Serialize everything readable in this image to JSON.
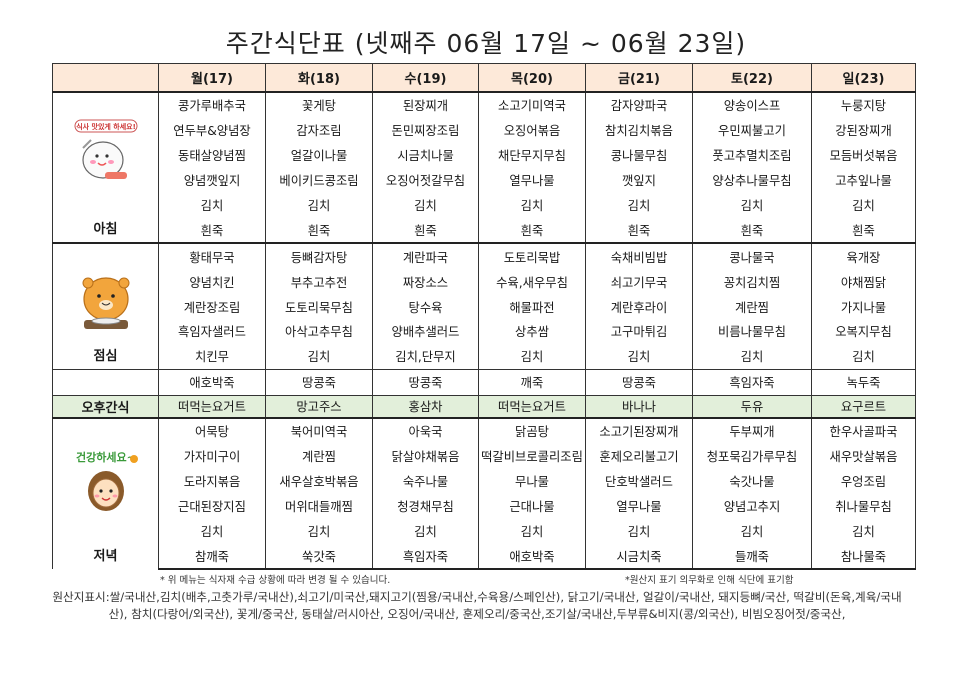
{
  "title": "주간식단표 (넷째주 06월 17일 ~ 06월 23일)",
  "days": [
    "월(17)",
    "화(18)",
    "수(19)",
    "목(20)",
    "금(21)",
    "토(22)",
    "일(23)"
  ],
  "meal_labels": {
    "breakfast": "아침",
    "lunch": "점심",
    "snack": "오후간식",
    "dinner": "저녁"
  },
  "badge_text": "식사 맛있게 하세요!",
  "breakfast": [
    [
      "콩가루배추국",
      "꽃게탕",
      "된장찌개",
      "소고기미역국",
      "감자양파국",
      "양송이스프",
      "누룽지탕"
    ],
    [
      "연두부&양념장",
      "감자조림",
      "돈민찌장조림",
      "오징어볶음",
      "참치김치볶음",
      "우민찌불고기",
      "강된장찌개"
    ],
    [
      "동태살양념찜",
      "얼갈이나물",
      "시금치나물",
      "채단무지무침",
      "콩나물무침",
      "풋고추멸치조림",
      "모듬버섯볶음"
    ],
    [
      "양념깻잎지",
      "베이키드콩조림",
      "오징어젓갈무침",
      "열무나물",
      "깻잎지",
      "양상추나물무침",
      "고추잎나물"
    ],
    [
      "김치",
      "김치",
      "김치",
      "김치",
      "김치",
      "김치",
      "김치"
    ],
    [
      "흰죽",
      "흰죽",
      "흰죽",
      "흰죽",
      "흰죽",
      "흰죽",
      "흰죽"
    ]
  ],
  "lunch": [
    [
      "황태무국",
      "등뼈감자탕",
      "계란파국",
      "도토리묵밥",
      "숙채비빔밥",
      "콩나물국",
      "육개장"
    ],
    [
      "양념치킨",
      "부추고추전",
      "짜장소스",
      "수육,새우무침",
      "쇠고기무국",
      "꽁치김치찜",
      "야채찜닭"
    ],
    [
      "계란장조림",
      "도토리묵무침",
      "탕수육",
      "해물파전",
      "계란후라이",
      "계란찜",
      "가지나물"
    ],
    [
      "흑임자샐러드",
      "아삭고추무침",
      "양배추샐러드",
      "상추쌈",
      "고구마튀김",
      "비름나물무침",
      "오복지무침"
    ],
    [
      "치킨무",
      "김치",
      "김치,단무지",
      "김치",
      "김치",
      "김치",
      "김치"
    ],
    [
      "애호박죽",
      "땅콩죽",
      "땅콩죽",
      "깨죽",
      "땅콩죽",
      "흑임자죽",
      "녹두죽"
    ]
  ],
  "snack": [
    "떠먹는요거트",
    "망고주스",
    "홍삼차",
    "떠먹는요거트",
    "바나나",
    "두유",
    "요구르트"
  ],
  "dinner": [
    [
      "어묵탕",
      "북어미역국",
      "아욱국",
      "닭곰탕",
      "소고기된장찌개",
      "두부찌개",
      "한우사골파국"
    ],
    [
      "가자미구이",
      "계란찜",
      "닭살야채볶음",
      "떡갈비브로콜리조림",
      "훈제오리불고기",
      "청포묵김가루무침",
      "새우맛살볶음"
    ],
    [
      "도라지볶음",
      "새우살호박볶음",
      "숙주나물",
      "무나물",
      "단호박샐러드",
      "숙갓나물",
      "우엉조림"
    ],
    [
      "근대된장지짐",
      "머위대들깨찜",
      "청경채무침",
      "근대나물",
      "열무나물",
      "양념고추지",
      "취나물무침"
    ],
    [
      "김치",
      "김치",
      "김치",
      "김치",
      "김치",
      "김치",
      "김치"
    ],
    [
      "참깨죽",
      "쑥갓죽",
      "흑임자죽",
      "애호박죽",
      "시금치죽",
      "들깨죽",
      "참나물죽"
    ]
  ],
  "note_left": "* 위 메뉴는 식자재 수급 상황에 따라 변경 될 수 있습니다.",
  "note_right": "*원산지 표기 의무화로 인해 식단에 표기함",
  "origin_text": "원산지표시:쌀/국내산,김치(배추,고춧가루/국내산),쇠고기/미국산,돼지고기(찜용/국내산,수육용/스페인산), 닭고기/국내산, 얼갈이/국내산, 돼지등뼈/국산, 떡갈비(돈육,계육/국내산), 참치(다랑어/외국산), 꽃게/중국산, 동태살/러시아산, 오징어/국내산, 훈제오리/중국산,조기살/국내산,두부류&비지(콩/외국산), 비빔오징어젓/중국산,"
}
